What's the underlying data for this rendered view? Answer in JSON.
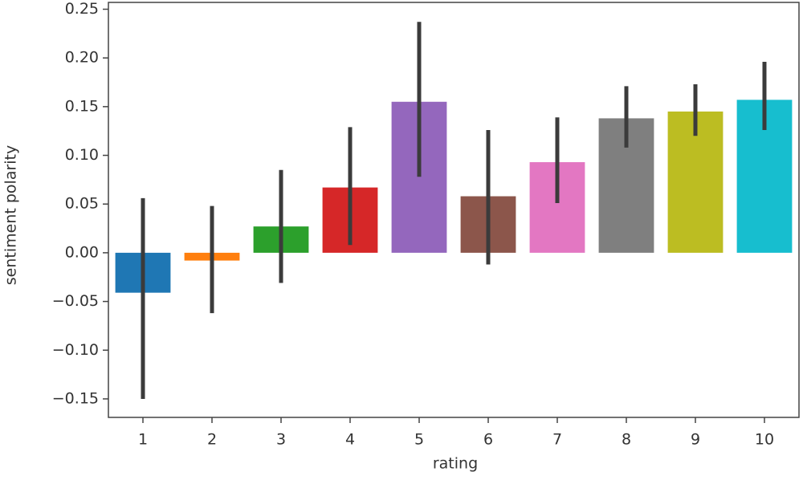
{
  "chart_data": {
    "type": "bar",
    "x_label": "rating",
    "y_label": "sentiment polarity",
    "categories": [
      "1",
      "2",
      "3",
      "4",
      "5",
      "6",
      "7",
      "8",
      "9",
      "10"
    ],
    "values": [
      -0.041,
      -0.008,
      0.027,
      0.067,
      0.155,
      0.058,
      0.093,
      0.138,
      0.145,
      0.157
    ],
    "ci_low": [
      -0.15,
      -0.062,
      -0.031,
      0.008,
      0.078,
      -0.012,
      0.051,
      0.108,
      0.12,
      0.126
    ],
    "ci_high": [
      0.056,
      0.048,
      0.085,
      0.129,
      0.237,
      0.126,
      0.139,
      0.171,
      0.173,
      0.196
    ],
    "colors": [
      "#1f77b4",
      "#ff7f0e",
      "#2ca02c",
      "#d62728",
      "#9467bd",
      "#8c564b",
      "#e377c2",
      "#7f7f7f",
      "#bcbd22",
      "#17becf"
    ],
    "error_color": "#3b3b3b",
    "ylim": [
      -0.169,
      0.257
    ],
    "yticks": [
      {
        "value": -0.15,
        "label": "−0.15"
      },
      {
        "value": -0.1,
        "label": "−0.10"
      },
      {
        "value": -0.05,
        "label": "−0.05"
      },
      {
        "value": 0,
        "label": "0.00"
      },
      {
        "value": 0.05,
        "label": "0.05"
      },
      {
        "value": 0.1,
        "label": "0.10"
      },
      {
        "value": 0.15,
        "label": "0.15"
      },
      {
        "value": 0.2,
        "label": "0.20"
      },
      {
        "value": 0.25,
        "label": "0.25"
      }
    ],
    "grid": false
  }
}
